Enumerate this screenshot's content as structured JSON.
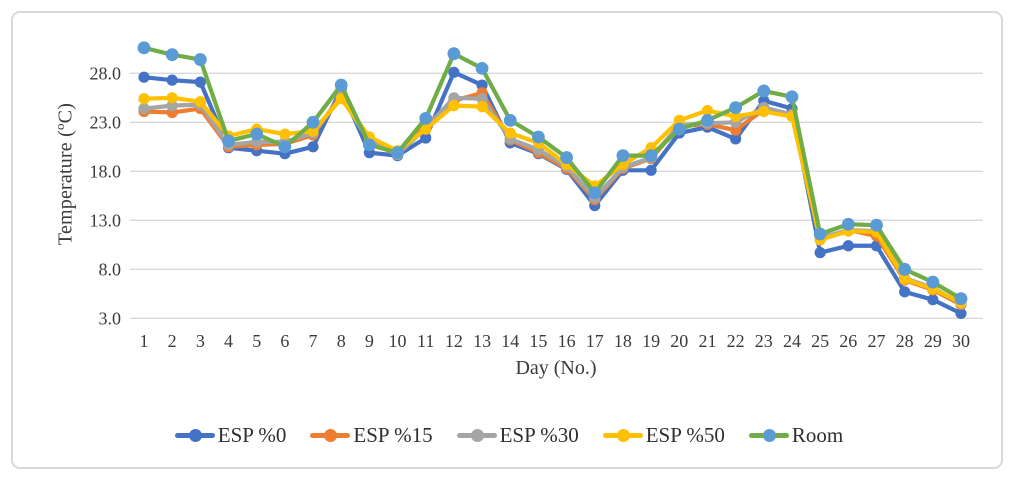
{
  "chart_data": {
    "type": "line",
    "title": "",
    "xlabel": "Day (No.)",
    "ylabel": "Temperature (°C)",
    "ylabel_parts": {
      "prefix": "Temperature (",
      "sup": "o",
      "suffix": "C)"
    },
    "x": [
      1,
      2,
      3,
      4,
      5,
      6,
      7,
      8,
      9,
      10,
      11,
      12,
      13,
      14,
      15,
      16,
      17,
      18,
      19,
      20,
      21,
      22,
      23,
      24,
      25,
      26,
      27,
      28,
      29,
      30
    ],
    "y_tick_values": [
      28,
      23,
      18,
      13,
      8,
      3
    ],
    "y_tick_labels": [
      "28.0",
      "23.0",
      "18.0",
      "13.0",
      "8.0",
      "3.0"
    ],
    "ylim": [
      3,
      33
    ],
    "grid": "horizontal",
    "legend_position": "bottom",
    "gridline_color": "#d9d9d9",
    "text_color": "#3a3a3a",
    "series": [
      {
        "name": "ESP %0",
        "color": "#4472C4",
        "marker_color": "#4472C4",
        "values": [
          27.6,
          27.3,
          27.1,
          20.4,
          20.1,
          19.8,
          20.5,
          26.4,
          19.9,
          19.6,
          21.4,
          28.1,
          26.8,
          20.9,
          19.8,
          18.2,
          14.5,
          18.1,
          18.1,
          21.9,
          22.5,
          21.3,
          25.2,
          24.4,
          9.7,
          10.4,
          10.4,
          5.7,
          4.9,
          3.5
        ]
      },
      {
        "name": "ESP %15",
        "color": "#ED7D31",
        "marker_color": "#ED7D31",
        "values": [
          24.1,
          24.0,
          24.4,
          20.5,
          20.7,
          20.8,
          21.7,
          25.8,
          21.1,
          19.8,
          22.6,
          25.2,
          26.0,
          21.2,
          19.9,
          18.3,
          15.1,
          18.3,
          19.3,
          22.6,
          22.8,
          22.2,
          24.3,
          23.7,
          11.1,
          12.0,
          11.4,
          6.9,
          5.9,
          4.4
        ]
      },
      {
        "name": "ESP %30",
        "color": "#A5A5A5",
        "marker_color": "#A5A5A5",
        "values": [
          24.4,
          24.7,
          24.8,
          20.7,
          21.0,
          21.0,
          21.9,
          25.6,
          21.0,
          19.7,
          22.4,
          25.5,
          25.4,
          21.3,
          20.2,
          18.5,
          15.3,
          18.4,
          19.4,
          22.7,
          22.9,
          23.0,
          24.5,
          23.8,
          11.2,
          12.0,
          11.9,
          7.1,
          6.1,
          4.5
        ]
      },
      {
        "name": "ESP %50",
        "color": "#FFC000",
        "marker_color": "#FFC000",
        "values": [
          25.4,
          25.5,
          25.1,
          21.6,
          22.3,
          21.8,
          22.1,
          25.4,
          21.5,
          20.1,
          22.3,
          24.7,
          24.6,
          21.9,
          20.9,
          18.7,
          16.5,
          18.7,
          20.4,
          23.2,
          24.2,
          23.6,
          24.1,
          23.6,
          11.0,
          11.9,
          11.8,
          7.0,
          6.0,
          4.6
        ]
      },
      {
        "name": "Room",
        "color": "#70AD47",
        "marker_color": "#5B9BD5",
        "values": [
          30.6,
          29.9,
          29.4,
          21.1,
          21.8,
          20.5,
          23.0,
          26.8,
          20.7,
          19.9,
          23.4,
          30.0,
          28.5,
          23.2,
          21.5,
          19.4,
          15.8,
          19.6,
          19.6,
          22.3,
          23.2,
          24.5,
          26.2,
          25.6,
          11.6,
          12.6,
          12.5,
          8.0,
          6.7,
          5.0
        ]
      }
    ]
  }
}
